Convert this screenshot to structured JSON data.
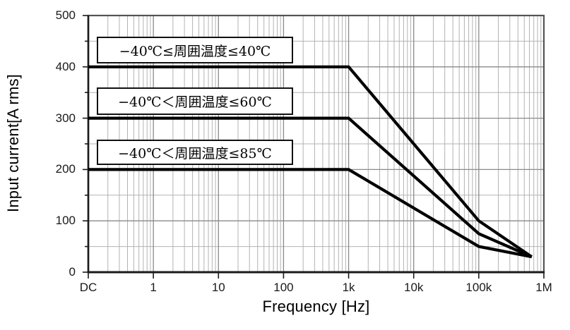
{
  "chart_data": {
    "type": "line",
    "title": "",
    "xlabel": "Frequency [Hz]",
    "ylabel": "Input current[A rms]",
    "x_scale": "log",
    "xlim": [
      0.1,
      1000000
    ],
    "ylim": [
      0,
      500
    ],
    "grid": true,
    "y_minor_step": 50,
    "x_ticks": [
      {
        "value": 0.1,
        "label": "DC"
      },
      {
        "value": 1,
        "label": "1"
      },
      {
        "value": 10,
        "label": "10"
      },
      {
        "value": 100,
        "label": "100"
      },
      {
        "value": 1000,
        "label": "1k"
      },
      {
        "value": 10000,
        "label": "10k"
      },
      {
        "value": 100000,
        "label": "100k"
      },
      {
        "value": 1000000,
        "label": "1M"
      }
    ],
    "y_ticks": [
      {
        "value": 0,
        "label": "0"
      },
      {
        "value": 100,
        "label": "100"
      },
      {
        "value": 200,
        "label": "200"
      },
      {
        "value": 300,
        "label": "300"
      },
      {
        "value": 400,
        "label": "400"
      },
      {
        "value": 500,
        "label": "500"
      }
    ],
    "series": [
      {
        "name": "−40℃≤周囲温度≤40℃",
        "points": [
          [
            0.1,
            400
          ],
          [
            1000,
            400
          ],
          [
            100000,
            100
          ],
          [
            650000,
            30
          ]
        ]
      },
      {
        "name": "−40℃＜周囲温度≤60℃",
        "points": [
          [
            0.1,
            300
          ],
          [
            1000,
            300
          ],
          [
            100000,
            75
          ],
          [
            650000,
            30
          ]
        ]
      },
      {
        "name": "−40℃＜周囲温度≤85℃",
        "points": [
          [
            0.1,
            200
          ],
          [
            1000,
            200
          ],
          [
            100000,
            50
          ],
          [
            650000,
            30
          ]
        ]
      }
    ],
    "colors": {
      "curve": "#000000",
      "grid_minor": "#b3b3b3",
      "grid_major": "#8a8a8a",
      "frame": "#555555",
      "axis": "#1a1a1a",
      "background": "#ffffff"
    }
  },
  "annotations": [
    {
      "text": "−40℃≤周囲温度≤40℃"
    },
    {
      "text": "−40℃＜周囲温度≤60℃"
    },
    {
      "text": "−40℃＜周囲温度≤85℃"
    }
  ]
}
